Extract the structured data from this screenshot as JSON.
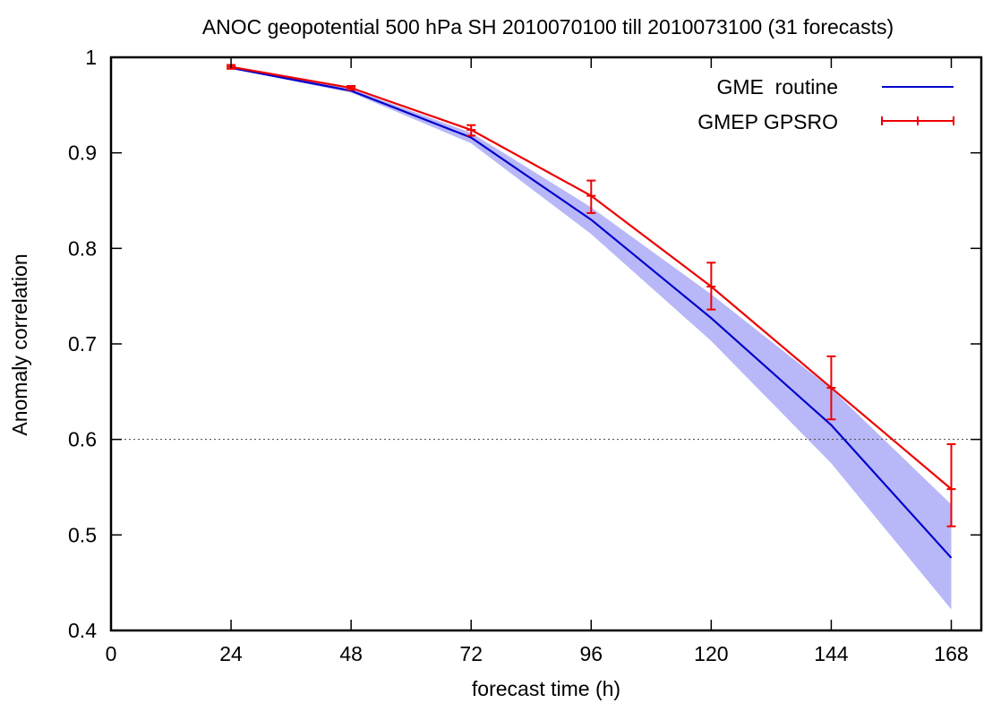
{
  "chart_data": {
    "type": "line",
    "title": "ANOC geopotential 500 hPa  SH   2010070100 till 2010073100  (31 forecasts)",
    "xlabel": "forecast time (h)",
    "ylabel": "Anomaly correlation",
    "xlim": [
      0,
      174
    ],
    "ylim": [
      0.4,
      1.0
    ],
    "xticks": [
      0,
      24,
      48,
      72,
      96,
      120,
      144,
      168
    ],
    "yticks": [
      0.4,
      0.5,
      0.6,
      0.7,
      0.8,
      0.9,
      1.0
    ],
    "ytick_labels": [
      "0.4",
      "0.5",
      "0.6",
      "0.7",
      "0.8",
      "0.9",
      "1"
    ],
    "reference_line": {
      "y": 0.6,
      "style": "dotted"
    },
    "legend_position": "top-right",
    "grid": false,
    "series": [
      {
        "name": "GME  routine",
        "color": "#0000cc",
        "x": [
          24,
          48,
          72,
          96,
          120,
          144,
          168
        ],
        "y": [
          0.989,
          0.965,
          0.916,
          0.83,
          0.727,
          0.615,
          0.476
        ],
        "band_color": "#b8b8f8",
        "band_lower": [
          0.988,
          0.963,
          0.91,
          0.815,
          0.703,
          0.575,
          0.422
        ],
        "band_upper": [
          0.99,
          0.967,
          0.921,
          0.843,
          0.752,
          0.653,
          0.532
        ]
      },
      {
        "name": "GMEP GPSRO",
        "color": "#ee0000",
        "x": [
          24,
          48,
          72,
          96,
          120,
          144,
          168
        ],
        "y": [
          0.99,
          0.968,
          0.924,
          0.855,
          0.76,
          0.654,
          0.548
        ],
        "err_lower": [
          0.988,
          0.966,
          0.918,
          0.837,
          0.736,
          0.621,
          0.509
        ],
        "err_upper": [
          0.992,
          0.97,
          0.929,
          0.871,
          0.785,
          0.687,
          0.595
        ]
      }
    ]
  }
}
